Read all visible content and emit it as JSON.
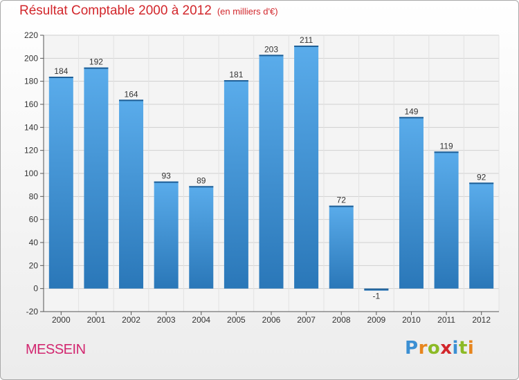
{
  "title": "Résultat Comptable 2000 à 2012",
  "subtitle": "(en milliers d'€)",
  "commune": "MESSEIN",
  "logo": {
    "letters": [
      "P",
      "r",
      "o",
      "x",
      "i",
      "t",
      "i"
    ],
    "colors": [
      "#3b8fd3",
      "#e7851d",
      "#8cba26",
      "#d2262b",
      "#3b8fd3",
      "#8cba26",
      "#e7851d"
    ]
  },
  "colors": {
    "bar": "#4a9de0",
    "bar_dark": "#2a77b8",
    "title": "#d2262b",
    "commune": "#d2266f"
  },
  "chart_data": {
    "type": "bar",
    "categories": [
      "2000",
      "2001",
      "2002",
      "2003",
      "2004",
      "2005",
      "2006",
      "2007",
      "2008",
      "2009",
      "2010",
      "2011",
      "2012"
    ],
    "values": [
      184,
      192,
      164,
      93,
      89,
      181,
      203,
      211,
      72,
      -1,
      149,
      119,
      92
    ],
    "data_labels": [
      "184",
      "192",
      "164",
      "93",
      "89",
      "181",
      "203",
      "211",
      "72",
      "-1",
      "149",
      "119",
      "92"
    ],
    "yticks": [
      "-20",
      "0",
      "20",
      "40",
      "60",
      "80",
      "100",
      "120",
      "140",
      "160",
      "180",
      "200",
      "220"
    ],
    "ylim": [
      -20,
      220
    ],
    "grid": true,
    "title": "Résultat Comptable 2000 à 2012",
    "xlabel": "",
    "ylabel": ""
  }
}
